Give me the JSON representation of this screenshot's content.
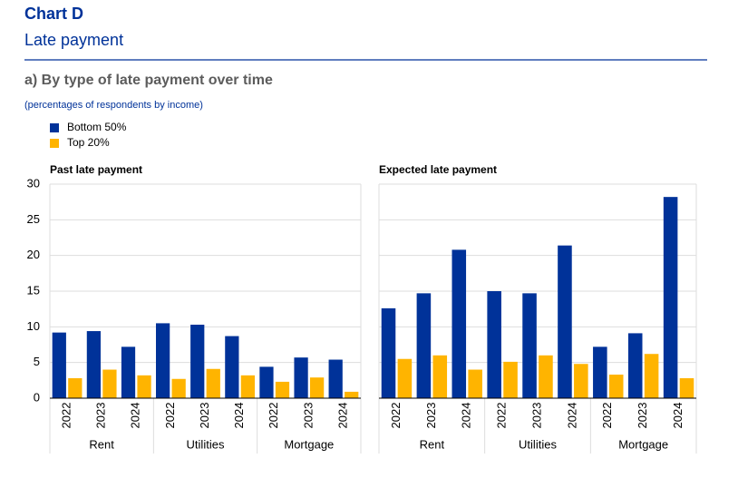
{
  "header": {
    "title": "Chart D",
    "subtitle": "Late payment",
    "section": "a) By type of late payment over time",
    "units": "(percentages of respondents by income)"
  },
  "chart_data": [
    {
      "type": "bar",
      "title": "Past late payment",
      "categories": [
        "2022",
        "2023",
        "2024",
        "2022",
        "2023",
        "2024",
        "2022",
        "2023",
        "2024"
      ],
      "groups": [
        "Rent",
        "Utilities",
        "Mortgage"
      ],
      "series": [
        {
          "name": "Bottom 50%",
          "color": "#003299",
          "values": [
            9.2,
            9.4,
            7.2,
            10.5,
            10.3,
            8.7,
            4.4,
            5.7,
            5.4
          ]
        },
        {
          "name": "Top 20%",
          "color": "#ffb400",
          "values": [
            2.8,
            4.0,
            3.2,
            2.7,
            4.1,
            3.2,
            2.3,
            2.9,
            0.9
          ]
        }
      ],
      "ylim": [
        0,
        30
      ],
      "yticks": [
        0,
        5,
        10,
        15,
        20,
        25,
        30
      ],
      "grid": true
    },
    {
      "type": "bar",
      "title": "Expected late payment",
      "categories": [
        "2022",
        "2023",
        "2024",
        "2022",
        "2023",
        "2024",
        "2022",
        "2023",
        "2024"
      ],
      "groups": [
        "Rent",
        "Utilities",
        "Mortgage"
      ],
      "series": [
        {
          "color": "#003299",
          "values": [
            12.6,
            14.7,
            20.8,
            15.0,
            14.7,
            21.4,
            7.2,
            9.1,
            28.2
          ]
        },
        {
          "color": "#ffb400",
          "values": [
            5.5,
            6.0,
            4.0,
            5.1,
            6.0,
            4.8,
            3.3,
            6.2,
            2.8
          ]
        }
      ],
      "ylim": [
        0,
        30
      ],
      "yticks": [
        0,
        5,
        10,
        15,
        20,
        25,
        30
      ],
      "grid": true
    }
  ]
}
